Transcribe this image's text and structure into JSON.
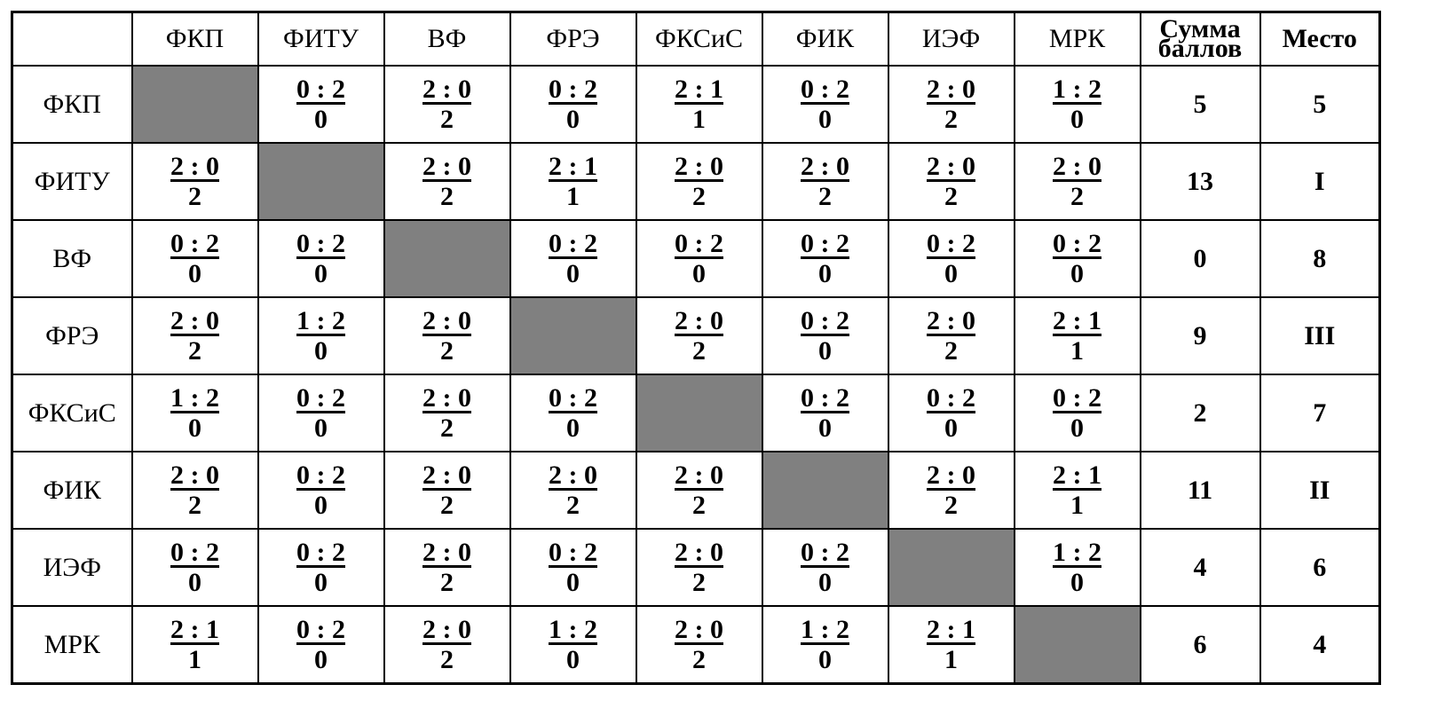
{
  "table": {
    "header": [
      "ФКП",
      "ФИТУ",
      "ВФ",
      "ФРЭ",
      "ФКСиС",
      "ФИК",
      "ИЭФ",
      "МРК",
      "Сумма баллов",
      "Место"
    ],
    "rows": [
      {
        "team": "ФКП",
        "cells": [
          null,
          {
            "score": "0 : 2",
            "points": 0
          },
          {
            "score": "2 : 0",
            "points": 2
          },
          {
            "score": "0 : 2",
            "points": 0
          },
          {
            "score": "2 : 1",
            "points": 1
          },
          {
            "score": "0 : 2",
            "points": 0
          },
          {
            "score": "2 : 0",
            "points": 2
          },
          {
            "score": "1 : 2",
            "points": 0
          }
        ],
        "total": 5,
        "place": "5"
      },
      {
        "team": "ФИТУ",
        "cells": [
          {
            "score": "2 : 0",
            "points": 2
          },
          null,
          {
            "score": "2 : 0",
            "points": 2
          },
          {
            "score": "2 : 1",
            "points": 1
          },
          {
            "score": "2 : 0",
            "points": 2
          },
          {
            "score": "2 : 0",
            "points": 2
          },
          {
            "score": "2 : 0",
            "points": 2
          },
          {
            "score": "2 : 0",
            "points": 2
          }
        ],
        "total": 13,
        "place": "I"
      },
      {
        "team": "ВФ",
        "cells": [
          {
            "score": "0 : 2",
            "points": 0
          },
          {
            "score": "0 : 2",
            "points": 0
          },
          null,
          {
            "score": "0 : 2",
            "points": 0
          },
          {
            "score": "0 : 2",
            "points": 0
          },
          {
            "score": "0 : 2",
            "points": 0
          },
          {
            "score": "0 : 2",
            "points": 0
          },
          {
            "score": "0 : 2",
            "points": 0
          }
        ],
        "total": 0,
        "place": "8"
      },
      {
        "team": "ФРЭ",
        "cells": [
          {
            "score": "2 : 0",
            "points": 2
          },
          {
            "score": "1 : 2",
            "points": 0
          },
          {
            "score": "2 : 0",
            "points": 2
          },
          null,
          {
            "score": "2 : 0",
            "points": 2
          },
          {
            "score": "0 : 2",
            "points": 0
          },
          {
            "score": "2 : 0",
            "points": 2
          },
          {
            "score": "2 : 1",
            "points": 1
          }
        ],
        "total": 9,
        "place": "III"
      },
      {
        "team": "ФКСиС",
        "cells": [
          {
            "score": "1 : 2",
            "points": 0
          },
          {
            "score": "0 : 2",
            "points": 0
          },
          {
            "score": "2 : 0",
            "points": 2
          },
          {
            "score": "0 : 2",
            "points": 0
          },
          null,
          {
            "score": "0 : 2",
            "points": 0
          },
          {
            "score": "0 : 2",
            "points": 0
          },
          {
            "score": "0 : 2",
            "points": 0
          }
        ],
        "total": 2,
        "place": "7"
      },
      {
        "team": "ФИК",
        "cells": [
          {
            "score": "2 : 0",
            "points": 2
          },
          {
            "score": "0 : 2",
            "points": 0
          },
          {
            "score": "2 : 0",
            "points": 2
          },
          {
            "score": "2 : 0",
            "points": 2
          },
          {
            "score": "2 : 0",
            "points": 2
          },
          null,
          {
            "score": "2 : 0",
            "points": 2
          },
          {
            "score": "2 : 1",
            "points": 1
          }
        ],
        "total": 11,
        "place": "II"
      },
      {
        "team": "ИЭФ",
        "cells": [
          {
            "score": "0 : 2",
            "points": 0
          },
          {
            "score": "0 : 2",
            "points": 0
          },
          {
            "score": "2 : 0",
            "points": 2
          },
          {
            "score": "0 : 2",
            "points": 0
          },
          {
            "score": "2 : 0",
            "points": 2
          },
          {
            "score": "0 : 2",
            "points": 0
          },
          null,
          {
            "score": "1 : 2",
            "points": 0
          }
        ],
        "total": 4,
        "place": "6"
      },
      {
        "team": "МРК",
        "cells": [
          {
            "score": "2 : 1",
            "points": 1
          },
          {
            "score": "0 : 2",
            "points": 0
          },
          {
            "score": "2 : 0",
            "points": 2
          },
          {
            "score": "1 : 2",
            "points": 0
          },
          {
            "score": "2 : 0",
            "points": 2
          },
          {
            "score": "1 : 2",
            "points": 0
          },
          {
            "score": "2 : 1",
            "points": 1
          },
          null
        ],
        "total": 6,
        "place": "4"
      }
    ]
  }
}
